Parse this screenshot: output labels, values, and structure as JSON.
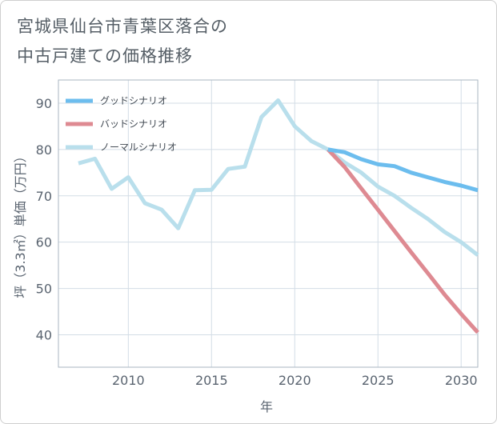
{
  "title_line1": "宮城県仙台市青葉区落合の",
  "title_line2": "中古戸建ての価格推移",
  "chart_data": {
    "type": "line",
    "xlabel": "年",
    "ylabel": "坪（3.3㎡）単価（万円）",
    "xlim": [
      2005.8,
      2031
    ],
    "ylim": [
      33,
      95
    ],
    "xticks": [
      2010,
      2015,
      2020,
      2025,
      2030
    ],
    "yticks": [
      40,
      50,
      60,
      70,
      80,
      90
    ],
    "grid": true,
    "legend_position": "top-left",
    "series": [
      {
        "name": "グッドシナリオ",
        "color": "#6cbdee",
        "x": [
          2022,
          2023,
          2024,
          2025,
          2026,
          2027,
          2028,
          2029,
          2030,
          2031
        ],
        "y": [
          80,
          79.4,
          77.9,
          76.8,
          76.4,
          75,
          74,
          73,
          72.2,
          71.2
        ]
      },
      {
        "name": "バッドシナリオ",
        "color": "#de8a92",
        "x": [
          2022,
          2023,
          2024,
          2025,
          2026,
          2027,
          2028,
          2029,
          2030,
          2031
        ],
        "y": [
          80,
          76.2,
          71.6,
          67,
          62.4,
          57.8,
          53.3,
          48.7,
          44.5,
          40.5
        ]
      },
      {
        "name": "ノーマルシナリオ",
        "color": "#b9dfec",
        "x": [
          2007,
          2008,
          2009,
          2010,
          2011,
          2012,
          2013,
          2014,
          2015,
          2016,
          2017,
          2018,
          2019,
          2020,
          2021,
          2022,
          2023,
          2024,
          2025,
          2026,
          2027,
          2028,
          2029,
          2030,
          2031
        ],
        "y": [
          77,
          78,
          71.5,
          74,
          68.4,
          67,
          63,
          71.2,
          71.3,
          75.8,
          76.3,
          87,
          90.6,
          85,
          81.8,
          80,
          77.2,
          75,
          72,
          70,
          67.4,
          65,
          62.2,
          60,
          57.2
        ]
      }
    ]
  }
}
